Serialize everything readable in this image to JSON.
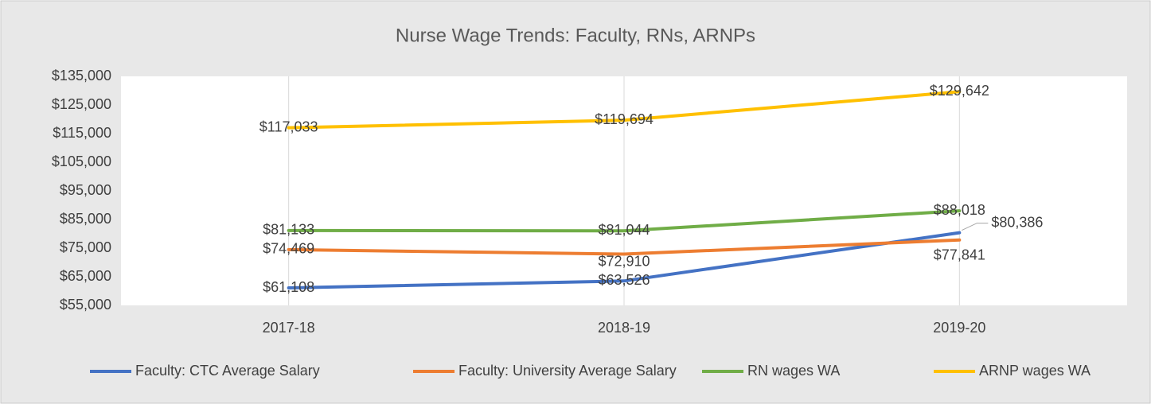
{
  "chart_data": {
    "type": "line",
    "title": "Nurse Wage Trends: Faculty, RNs, ARNPs",
    "categories": [
      "2017-18",
      "2018-19",
      "2019-20"
    ],
    "series": [
      {
        "name": "Faculty: CTC Average Salary",
        "color": "#4472c4",
        "values": [
          61108,
          63526,
          80386
        ],
        "value_labels": [
          "$61,108",
          "$63,526",
          "$80,386"
        ]
      },
      {
        "name": "Faculty: University Average Salary",
        "color": "#ed7d31",
        "values": [
          74469,
          72910,
          77841
        ],
        "value_labels": [
          "$74,469",
          "$72,910",
          "$77,841"
        ]
      },
      {
        "name": "RN wages WA",
        "color": "#70ad47",
        "values": [
          81133,
          81044,
          88018
        ],
        "value_labels": [
          "$81,133",
          "$81,044",
          "$88,018"
        ]
      },
      {
        "name": "ARNP wages WA",
        "color": "#ffc000",
        "values": [
          117033,
          119694,
          129642
        ],
        "value_labels": [
          "$117,033",
          "$119,694",
          "$129,642"
        ]
      }
    ],
    "ylim": [
      55000,
      135000
    ],
    "yticks": [
      {
        "value": 55000,
        "label": "$55,000"
      },
      {
        "value": 65000,
        "label": "$65,000"
      },
      {
        "value": 75000,
        "label": "$75,000"
      },
      {
        "value": 85000,
        "label": "$85,000"
      },
      {
        "value": 95000,
        "label": "$95,000"
      },
      {
        "value": 105000,
        "label": "$105,000"
      },
      {
        "value": 115000,
        "label": "$115,000"
      },
      {
        "value": 125000,
        "label": "$125,000"
      },
      {
        "value": 135000,
        "label": "$135,000"
      }
    ],
    "grid": "x",
    "legend": "bottom"
  }
}
